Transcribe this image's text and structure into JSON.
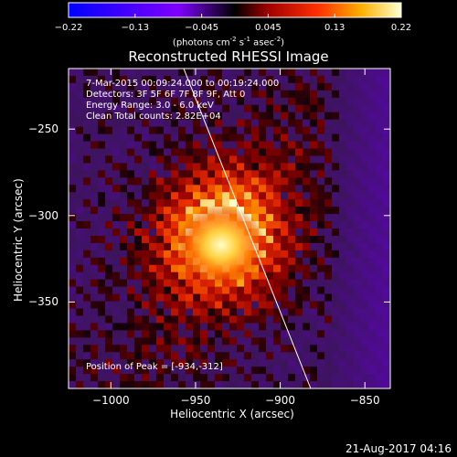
{
  "colorbar": {
    "ticks": [
      "-0.22",
      "-0.13",
      "-0.045",
      "0.045",
      "0.13",
      "0.22"
    ],
    "unit_base": "(photons cm",
    "unit_exp1": "-2",
    "unit_mid": " s",
    "unit_exp2": "-1",
    "unit_mid2": " asec",
    "unit_exp3": "-2",
    "unit_end": ")"
  },
  "info": {
    "time": "7-Mar-2015 00:09:24.000 to 00:19:24.000",
    "detectors": "Detectors: 3F 5F 6F 7F 8F 9F, Att 0",
    "energy": "Energy Range: 3.0 - 6.0 keV",
    "clean": "Clean    Total counts: 2.82E+04"
  },
  "peak_label": "Position of Peak = [-934,-312]",
  "datestamp": "21-Aug-2017 04:16",
  "chart_data": {
    "type": "heatmap",
    "title": "Reconstructed RHESSI Image",
    "xlabel": "Heliocentric X (arcsec)",
    "ylabel": "Heliocentric Y (arcsec)",
    "xlim": [
      -1025,
      -835
    ],
    "ylim": [
      -400,
      -215
    ],
    "xticks": [
      -1000,
      -950,
      -900,
      -850
    ],
    "xtick_labels": [
      "−1000",
      "−950",
      "−900",
      "−850"
    ],
    "yticks": [
      -350,
      -300,
      -250
    ],
    "ytick_labels": [
      "−350",
      "−300",
      "−250"
    ],
    "colorbar_range": [
      -0.22,
      0.22
    ],
    "peak": {
      "x": -934,
      "y": -312
    },
    "limb_line": [
      [
        -957,
        -215
      ],
      [
        -882,
        -400
      ]
    ]
  }
}
